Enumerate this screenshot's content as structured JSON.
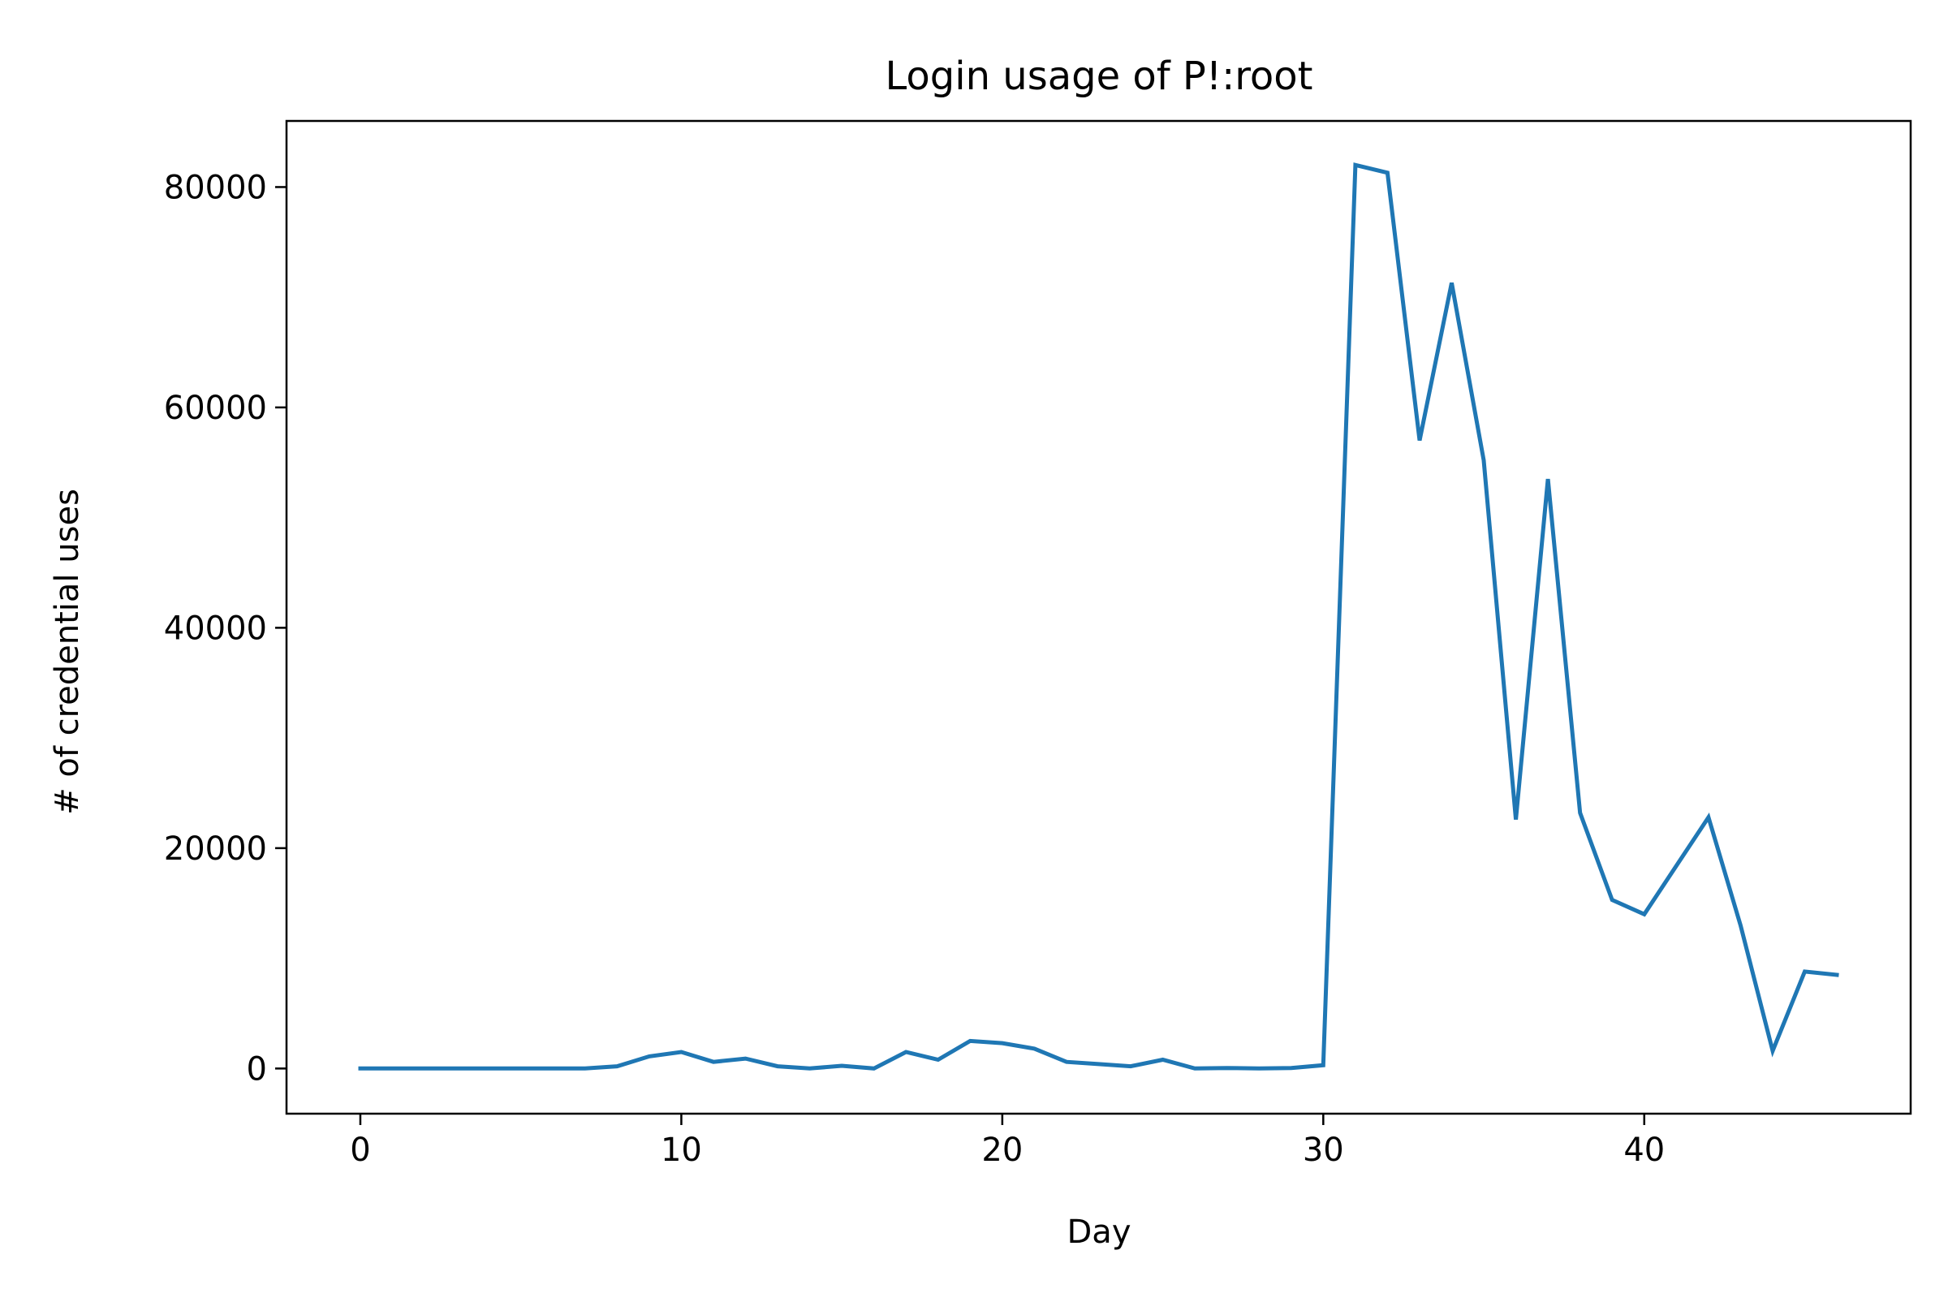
{
  "chart_data": {
    "type": "line",
    "title": "Login usage of P!:root",
    "xlabel": "Day",
    "ylabel": "# of credential uses",
    "xlim": [
      -2.3,
      48.3
    ],
    "ylim": [
      -4100,
      86000
    ],
    "xticks": [
      0,
      10,
      20,
      30,
      40
    ],
    "yticks": [
      0,
      20000,
      40000,
      60000,
      80000
    ],
    "xtick_labels": [
      "0",
      "10",
      "20",
      "30",
      "40"
    ],
    "ytick_labels": [
      "0",
      "20000",
      "40000",
      "60000",
      "80000"
    ],
    "grid": false,
    "legend": "none",
    "series": [
      {
        "color": "#1f77b4",
        "x": [
          0,
          1,
          2,
          3,
          4,
          5,
          6,
          7,
          8,
          9,
          10,
          11,
          12,
          13,
          14,
          15,
          16,
          17,
          18,
          19,
          20,
          21,
          22,
          23,
          24,
          25,
          26,
          27,
          28,
          29,
          30,
          31,
          32,
          33,
          34,
          35,
          36,
          37,
          38,
          39,
          40,
          41,
          42,
          43,
          44,
          45,
          46
        ],
        "values": [
          0,
          0,
          0,
          0,
          0,
          0,
          0,
          0,
          200,
          1100,
          1500,
          600,
          900,
          200,
          0,
          250,
          0,
          1500,
          800,
          2500,
          2300,
          1800,
          600,
          400,
          200,
          800,
          0,
          50,
          0,
          50,
          300,
          82000,
          81300,
          57000,
          71300,
          55200,
          22600,
          53500,
          23200,
          15300,
          14000,
          18400,
          22800,
          13000,
          1600,
          8800,
          8500
        ]
      }
    ]
  }
}
